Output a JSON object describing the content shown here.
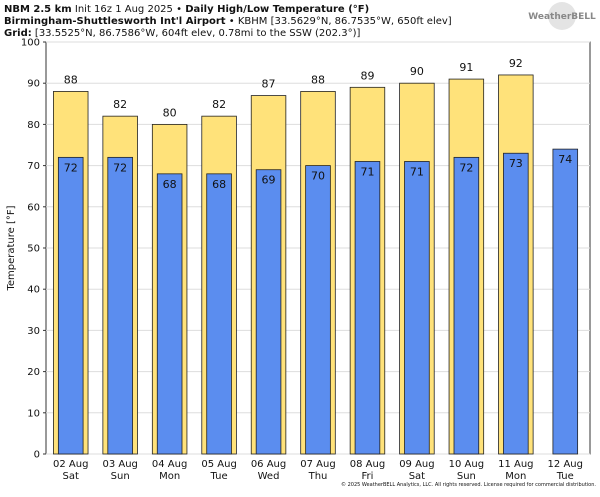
{
  "header": {
    "line1": [
      "NBM 2.5 km",
      "Init 16z 1 Aug 2025",
      "•",
      "Daily High/Low Temperature (°F)"
    ],
    "line2": [
      "Birmingham-Shuttlesworth Int'l Airport",
      "•",
      "KBHM [33.5629°N, 86.7535°W, 650ft elev]"
    ],
    "line3": [
      "Grid:",
      "[33.5525°N, 86.7586°W, 604ft elev, 0.78mi to the SSW (202.3°)]"
    ],
    "logo": "WeatherBELL",
    "footer": "© 2025 WeatherBELL Analytics, LLC. All rights reserved. License required for commercial distribution."
  },
  "chart_data": {
    "type": "bar",
    "ylabel": "Temperature [°F]",
    "categories": [
      "02 Aug",
      "03 Aug",
      "04 Aug",
      "05 Aug",
      "06 Aug",
      "07 Aug",
      "08 Aug",
      "09 Aug",
      "10 Aug",
      "11 Aug",
      "12 Aug"
    ],
    "category_sublabels": [
      "Sat",
      "Sun",
      "Mon",
      "Tue",
      "Wed",
      "Thu",
      "Fri",
      "Sat",
      "Sun",
      "Mon",
      "Tue"
    ],
    "series": [
      {
        "color": "#ffe27a",
        "values": [
          88,
          82,
          80,
          82,
          87,
          88,
          89,
          90,
          91,
          92,
          null
        ]
      },
      {
        "color": "#5b8def",
        "values": [
          72,
          72,
          68,
          68,
          69,
          70,
          71,
          71,
          72,
          73,
          74
        ]
      }
    ],
    "ylim": [
      0,
      100
    ],
    "yticks": [
      0,
      10,
      20,
      30,
      40,
      50,
      60,
      70,
      80,
      90,
      100
    ],
    "grid": true
  }
}
